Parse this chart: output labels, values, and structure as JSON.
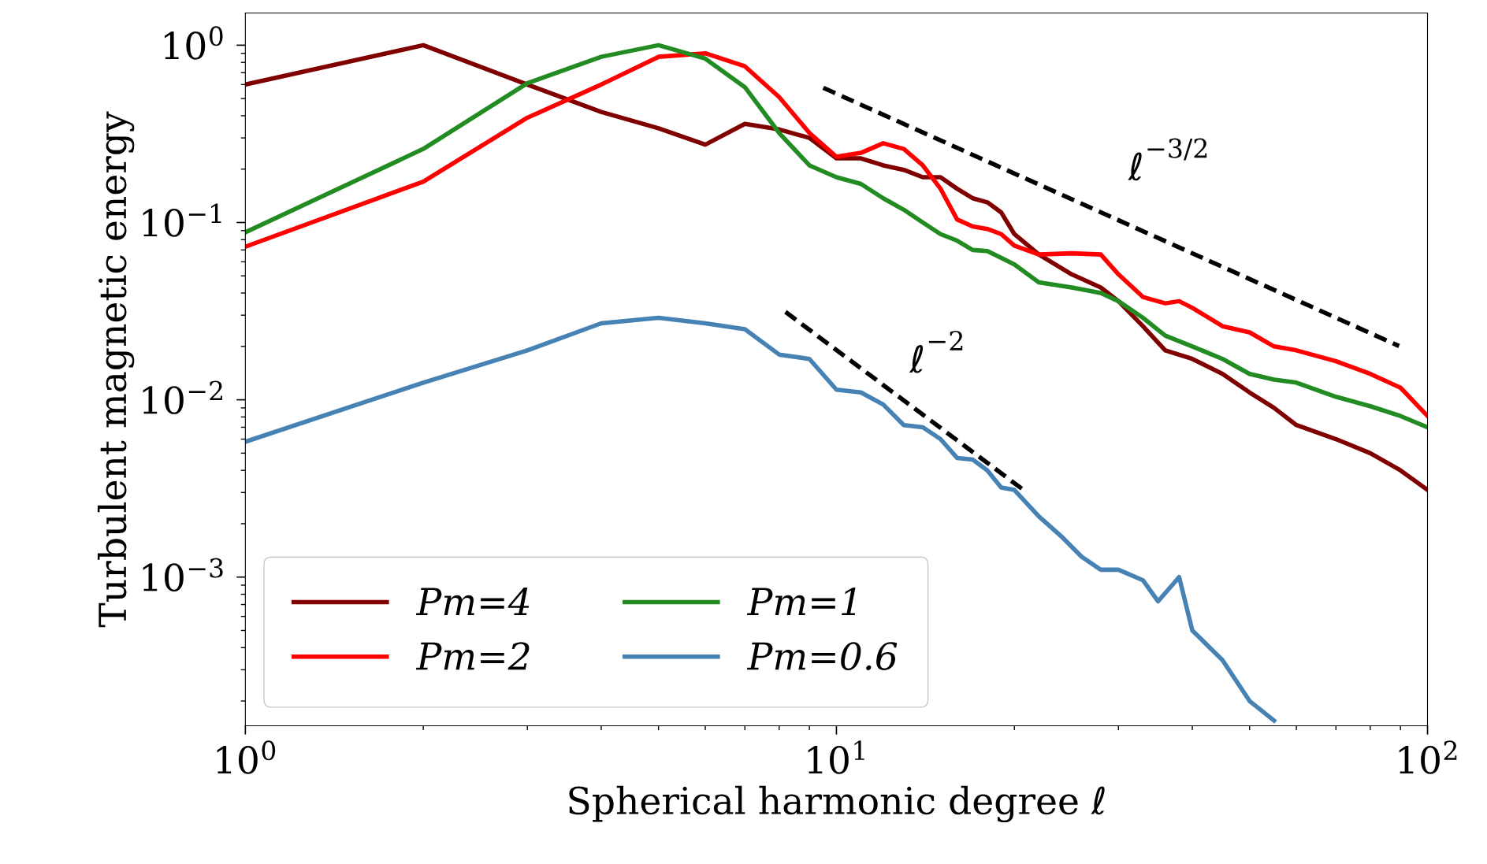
{
  "chart_data": {
    "type": "line",
    "xlabel": "Spherical harmonic degree ℓ",
    "ylabel": "Turbulent magnetic energy",
    "log": "xy",
    "grid": false,
    "legend": "bottom left",
    "line_style": "solid",
    "marker": "none",
    "xlim": [
      1,
      100
    ],
    "xticks": [
      {
        "value": 1,
        "label": "10$^{0}$"
      },
      {
        "value": 10,
        "label": "10$^{1}$"
      },
      {
        "value": 100,
        "label": "10$^{2}$"
      }
    ],
    "ylim": [
      0.000145,
      1.52
    ],
    "yticks": [
      {
        "value": 0.001,
        "label": "10$^{−3}$"
      },
      {
        "value": 0.01,
        "label": "10$^{−2}$"
      },
      {
        "value": 0.1,
        "label": "10$^{−1}$"
      },
      {
        "value": 1,
        "label": "10$^{0}$"
      }
    ],
    "series": [
      {
        "name": "Pm=4",
        "color": "#800000",
        "x": [
          1,
          2,
          3,
          4,
          5,
          6,
          7,
          8,
          9,
          10,
          11,
          12,
          13,
          14,
          15,
          16,
          17,
          18,
          19,
          20,
          22,
          25,
          28,
          30,
          33,
          36,
          40,
          45,
          50,
          55,
          60,
          70,
          80,
          90,
          100
        ],
        "values": [
          0.6,
          1.0,
          0.6,
          0.42,
          0.34,
          0.275,
          0.36,
          0.335,
          0.3,
          0.23,
          0.23,
          0.21,
          0.198,
          0.18,
          0.18,
          0.155,
          0.137,
          0.13,
          0.114,
          0.086,
          0.066,
          0.051,
          0.043,
          0.036,
          0.026,
          0.019,
          0.017,
          0.014,
          0.011,
          0.009,
          0.0072,
          0.006,
          0.005,
          0.004,
          0.0031
        ]
      },
      {
        "name": "Pm=2",
        "color": "#ff0000",
        "x": [
          1,
          2,
          3,
          4,
          5,
          6,
          7,
          8,
          9,
          10,
          11,
          12,
          13,
          14,
          15,
          16,
          17,
          18,
          19,
          20,
          22,
          25,
          28,
          30,
          33,
          36,
          38,
          40,
          45,
          50,
          55,
          60,
          70,
          80,
          90,
          100
        ],
        "values": [
          0.073,
          0.17,
          0.39,
          0.6,
          0.86,
          0.9,
          0.76,
          0.51,
          0.32,
          0.235,
          0.247,
          0.28,
          0.26,
          0.21,
          0.155,
          0.104,
          0.095,
          0.092,
          0.086,
          0.074,
          0.066,
          0.067,
          0.066,
          0.051,
          0.038,
          0.035,
          0.036,
          0.033,
          0.026,
          0.024,
          0.02,
          0.019,
          0.0165,
          0.014,
          0.0117,
          0.0081
        ]
      },
      {
        "name": "Pm=1",
        "color": "#228b22",
        "x": [
          1,
          2,
          3,
          4,
          5,
          6,
          7,
          8,
          9,
          10,
          11,
          12,
          13,
          14,
          15,
          16,
          17,
          18,
          20,
          22,
          25,
          28,
          30,
          33,
          36,
          40,
          45,
          50,
          55,
          60,
          70,
          80,
          90,
          100
        ],
        "values": [
          0.088,
          0.26,
          0.61,
          0.86,
          1.0,
          0.84,
          0.58,
          0.32,
          0.21,
          0.18,
          0.165,
          0.137,
          0.118,
          0.1,
          0.086,
          0.079,
          0.07,
          0.069,
          0.058,
          0.046,
          0.043,
          0.04,
          0.036,
          0.029,
          0.023,
          0.02,
          0.017,
          0.014,
          0.013,
          0.0125,
          0.0104,
          0.0092,
          0.0081,
          0.007
        ]
      },
      {
        "name": "Pm=0.6",
        "color": "#4682b4",
        "x": [
          1,
          2,
          3,
          4,
          5,
          6,
          7,
          8,
          9,
          10,
          11,
          12,
          13,
          14,
          15,
          16,
          17,
          18,
          19,
          20,
          22,
          24,
          26,
          28,
          30,
          33,
          35,
          38,
          40,
          45,
          50,
          55
        ],
        "values": [
          0.0058,
          0.0125,
          0.019,
          0.027,
          0.029,
          0.027,
          0.025,
          0.018,
          0.017,
          0.0114,
          0.011,
          0.0094,
          0.0072,
          0.007,
          0.006,
          0.0047,
          0.0046,
          0.004,
          0.0032,
          0.0031,
          0.0022,
          0.0017,
          0.0013,
          0.0011,
          0.0011,
          0.00096,
          0.00073,
          0.001,
          0.0005,
          0.00034,
          0.0002,
          0.000155
        ]
      },
      {
        "color": "#000000",
        "line_style": "dashed",
        "x": [
          9.5,
          89.5
        ],
        "values": [
          0.575,
          0.0201
        ]
      },
      {
        "color": "#000000",
        "line_style": "dashed",
        "x": [
          8.2,
          20.7
        ],
        "values": [
          0.0313,
          0.00311
        ]
      }
    ],
    "annotations": [
      "ℓ$^{−3/2}$",
      "ℓ$^{−2}$"
    ]
  }
}
